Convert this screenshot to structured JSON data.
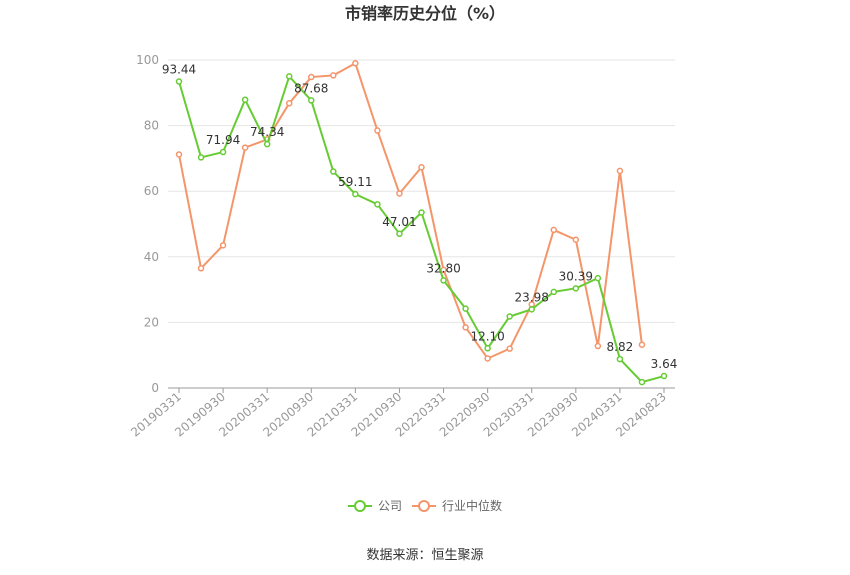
{
  "chart_data": {
    "type": "line",
    "title": "市销率历史分位（%）",
    "source": "数据来源：恒生聚源",
    "ylim": [
      0,
      100
    ],
    "yticks": [
      0,
      20,
      40,
      60,
      80,
      100
    ],
    "xtick_labels": [
      "20190331",
      "20190930",
      "20200331",
      "20200930",
      "20210331",
      "20210930",
      "20220331",
      "20220930",
      "20230331",
      "20230930",
      "20240331",
      "20240823"
    ],
    "legend_position": "bottom",
    "series": [
      {
        "name": "公司",
        "color": "#66cc33",
        "values": [
          93.44,
          70.3,
          71.94,
          87.9,
          74.34,
          95.0,
          87.68,
          66.0,
          59.11,
          56.0,
          47.01,
          53.5,
          32.8,
          24.2,
          12.1,
          21.8,
          23.98,
          29.3,
          30.39,
          33.5,
          8.82,
          1.8,
          3.64
        ],
        "labels": [
          "93.44",
          "",
          "71.94",
          "",
          "74.34",
          "",
          "87.68",
          "",
          "59.11",
          "",
          "47.01",
          "",
          "32.80",
          "",
          "12.10",
          "",
          "23.98",
          "",
          "30.39",
          "",
          "8.82",
          "",
          "3.64"
        ]
      },
      {
        "name": "行业中位数",
        "color": "#f4956a",
        "values": [
          71.2,
          36.5,
          43.5,
          73.3,
          75.8,
          86.8,
          94.8,
          95.3,
          99.0,
          78.5,
          59.3,
          67.3,
          36.0,
          18.5,
          9.0,
          12.0,
          25.5,
          48.2,
          45.2,
          12.8,
          66.2,
          13.2,
          null
        ]
      }
    ]
  }
}
